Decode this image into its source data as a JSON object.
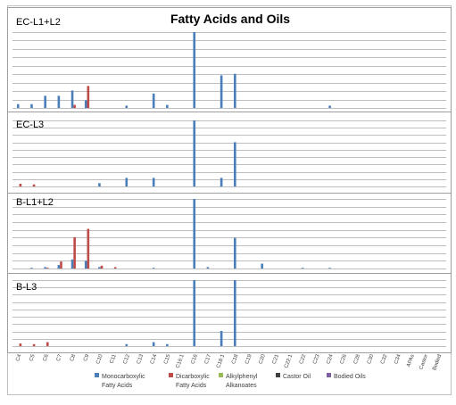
{
  "chart_data": {
    "type": "bar",
    "title": "Fatty Acids and Oils",
    "colors": {
      "Monocarboxylic Fatty Acids": "#4a7ebb",
      "Dicarboxylic Fatty Acids": "#be4b48",
      "Alkylphenyl Alkanoates": "#98b954",
      "Castor Oil": "#404040",
      "Bodied Oils": "#7d5fa0"
    },
    "categories": [
      "C4",
      "C5",
      "C6",
      "C7",
      "C8",
      "C9",
      "C10",
      "C11",
      "C12",
      "C13",
      "C14",
      "C15",
      "C16:1",
      "C16",
      "C17",
      "C18:1",
      "C18",
      "C19",
      "C20",
      "C21",
      "C22:1",
      "C22",
      "C23",
      "C24",
      "C26",
      "C28",
      "C30",
      "C32",
      "C34",
      "APAs",
      "Castor",
      "Bodied"
    ],
    "legend": [
      {
        "lines": [
          "Monocarboxylic",
          "Fatty Acids"
        ],
        "color": "#4a7ebb"
      },
      {
        "lines": [
          "Dicarboxylic",
          "Fatty Acids"
        ],
        "color": "#be4b48"
      },
      {
        "lines": [
          "Alkylphenyl",
          "Alkanoates"
        ],
        "color": "#98b954"
      },
      {
        "lines": [
          "Castor Oil"
        ],
        "color": "#404040"
      },
      {
        "lines": [
          "Bodied Oils"
        ],
        "color": "#7d5fa0"
      }
    ],
    "legend_position": "bottom",
    "grid": true,
    "y_axis_labels": false,
    "ylim": [
      0,
      100
    ],
    "panels": [
      {
        "label": "EC-L1+L2",
        "series": [
          {
            "name": "Monocarboxylic Fatty Acids",
            "values": [
              5,
              5,
              16,
              16,
              23,
              10,
              0,
              0,
              3,
              0,
              19,
              4,
              0,
              100,
              0,
              43,
              45,
              0,
              0,
              0,
              0,
              0,
              0,
              3,
              0,
              0,
              0,
              0,
              0,
              0,
              0,
              0
            ]
          },
          {
            "name": "Dicarboxylic Fatty Acids",
            "values": [
              0,
              0,
              0,
              0,
              4,
              29,
              0,
              0,
              0,
              0,
              0,
              0,
              0,
              0,
              0,
              0,
              0,
              0,
              0,
              0,
              0,
              0,
              0,
              0,
              0,
              0,
              0,
              0,
              0,
              0,
              0,
              0
            ]
          }
        ]
      },
      {
        "label": "EC-L3",
        "series": [
          {
            "name": "Monocarboxylic Fatty Acids",
            "values": [
              0,
              0,
              0,
              0,
              0,
              0,
              5,
              0,
              13,
              0,
              13,
              0,
              0,
              100,
              0,
              13,
              67,
              0,
              0,
              0,
              0,
              0,
              0,
              0,
              0,
              0,
              0,
              0,
              0,
              0,
              0,
              0
            ]
          },
          {
            "name": "Dicarboxylic Fatty Acids",
            "values": [
              4,
              3,
              0,
              0,
              0,
              0,
              0,
              0,
              0,
              0,
              0,
              0,
              0,
              0,
              0,
              0,
              0,
              0,
              0,
              0,
              0,
              0,
              0,
              0,
              0,
              0,
              0,
              0,
              0,
              0,
              0,
              0
            ]
          }
        ]
      },
      {
        "label": "B-L1+L2",
        "series": [
          {
            "name": "Monocarboxylic Fatty Acids",
            "values": [
              0,
              1,
              2,
              5,
              13,
              11,
              2,
              0,
              0,
              0,
              1,
              0,
              0,
              100,
              2,
              0,
              44,
              0,
              7,
              0,
              0,
              1,
              0,
              1,
              0,
              0,
              0,
              0,
              0,
              0,
              0,
              0
            ]
          },
          {
            "name": "Dicarboxylic Fatty Acids",
            "values": [
              0,
              0,
              1,
              10,
              45,
              57,
              4,
              2,
              0,
              0,
              0,
              0,
              0,
              0,
              0,
              0,
              0,
              0,
              0,
              0,
              0,
              0,
              0,
              0,
              0,
              0,
              0,
              0,
              0,
              0,
              0,
              0
            ]
          }
        ]
      },
      {
        "label": "B-L3",
        "series": [
          {
            "name": "Monocarboxylic Fatty Acids",
            "values": [
              0,
              0,
              0,
              0,
              0,
              0,
              0,
              0,
              3,
              0,
              6,
              3,
              0,
              100,
              0,
              23,
              100,
              0,
              0,
              0,
              0,
              0,
              0,
              0,
              0,
              0,
              0,
              0,
              0,
              0,
              0,
              0
            ]
          },
          {
            "name": "Dicarboxylic Fatty Acids",
            "values": [
              4,
              3,
              6,
              0,
              0,
              0,
              0,
              0,
              0,
              0,
              0,
              0,
              0,
              0,
              0,
              0,
              0,
              0,
              0,
              0,
              0,
              0,
              0,
              0,
              0,
              0,
              0,
              0,
              0,
              0,
              0,
              0
            ]
          }
        ]
      }
    ]
  }
}
